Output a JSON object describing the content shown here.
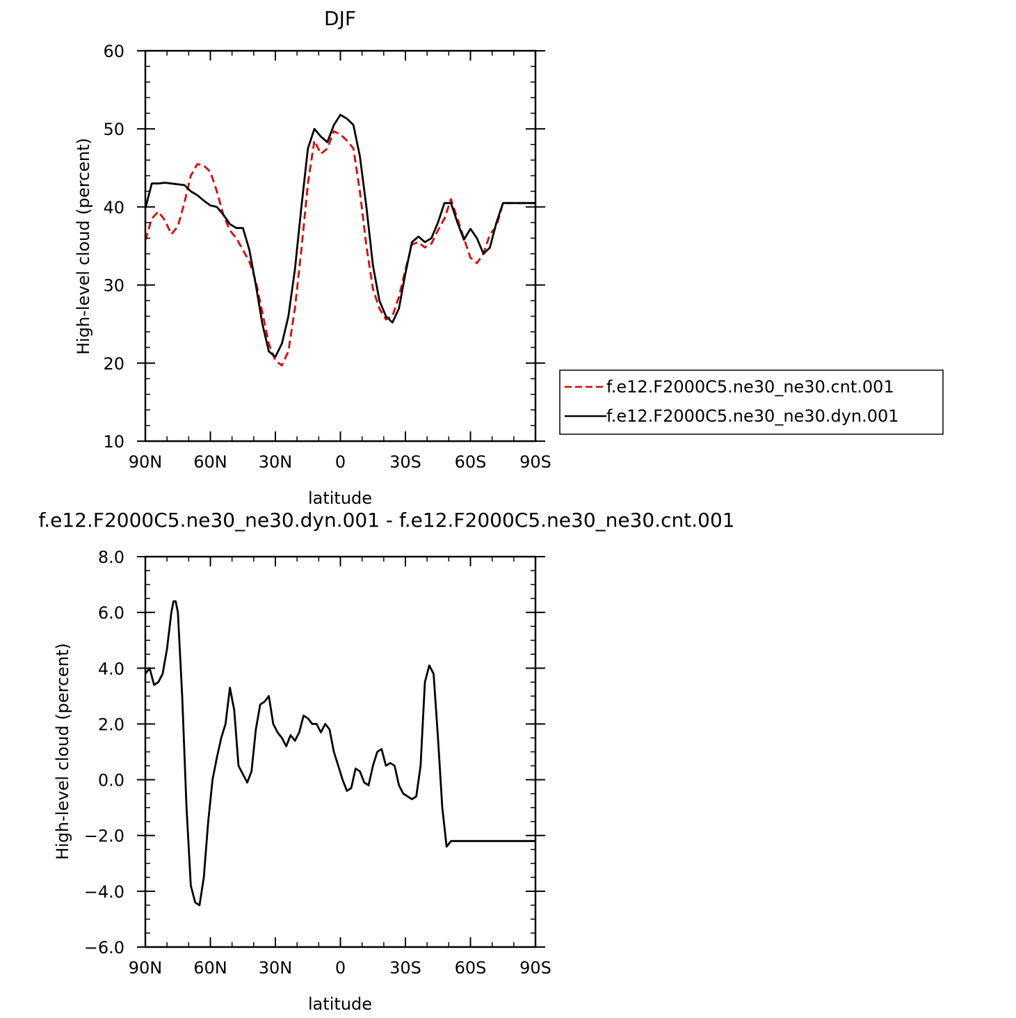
{
  "chart_data": [
    {
      "type": "line",
      "title": "DJF",
      "xlabel": "latitude",
      "ylabel": "High-level cloud (percent)",
      "xlim": [
        -90,
        90
      ],
      "ylim": [
        10,
        60
      ],
      "x_ticks": [
        -90,
        -60,
        -30,
        0,
        30,
        60,
        90
      ],
      "x_tick_labels": [
        "90N",
        "60N",
        "30N",
        "0",
        "30S",
        "60S",
        "90S"
      ],
      "y_ticks": [
        10,
        20,
        30,
        40,
        50,
        60
      ],
      "y_tick_labels": [
        "10",
        "20",
        "30",
        "40",
        "50",
        "60"
      ],
      "legend_position": "right",
      "series": [
        {
          "name": "f.e12.F2000C5.ne30_ne30.cnt.001",
          "color": "#e00000",
          "dash": "dashed",
          "x": [
            -90,
            -87,
            -84,
            -81,
            -78,
            -75,
            -72,
            -69,
            -66,
            -63,
            -60,
            -57,
            -54,
            -51,
            -48,
            -45,
            -42,
            -39,
            -36,
            -33,
            -30,
            -27,
            -24,
            -21,
            -18,
            -15,
            -12,
            -9,
            -6,
            -3,
            0,
            3,
            6,
            9,
            12,
            15,
            18,
            21,
            24,
            27,
            30,
            33,
            36,
            39,
            42,
            45,
            48,
            51,
            54,
            57,
            60,
            63,
            66,
            69,
            72,
            75,
            78,
            81,
            84,
            87,
            90
          ],
          "y": [
            35.7,
            38.5,
            39.4,
            38.3,
            36.5,
            37.5,
            40.5,
            44.0,
            45.5,
            45.3,
            44.5,
            42.0,
            39.0,
            37.0,
            36.0,
            34.5,
            33.0,
            30.5,
            26.5,
            22.5,
            20.3,
            19.7,
            21.5,
            27.0,
            34.5,
            43.0,
            48.5,
            46.8,
            47.5,
            49.7,
            49.3,
            48.5,
            47.5,
            42.0,
            35.0,
            29.5,
            27.0,
            25.6,
            26.0,
            28.5,
            32.0,
            35.2,
            35.5,
            34.8,
            35.3,
            37.0,
            38.5,
            41.0,
            38.5,
            36.0,
            33.5,
            32.8,
            34.0,
            36.5,
            37.5,
            40.5,
            40.5,
            40.5,
            40.5,
            40.5,
            40.5
          ]
        },
        {
          "name": "f.e12.F2000C5.ne30_ne30.dyn.001",
          "color": "#000000",
          "dash": "solid",
          "x": [
            -90,
            -87,
            -84,
            -81,
            -78,
            -75,
            -72,
            -69,
            -66,
            -63,
            -60,
            -57,
            -54,
            -51,
            -48,
            -45,
            -42,
            -39,
            -36,
            -33,
            -30,
            -27,
            -24,
            -21,
            -18,
            -15,
            -12,
            -9,
            -6,
            -3,
            0,
            3,
            6,
            9,
            12,
            15,
            18,
            21,
            24,
            27,
            30,
            33,
            36,
            39,
            42,
            45,
            48,
            51,
            54,
            57,
            60,
            63,
            66,
            69,
            72,
            75,
            78,
            81,
            84,
            87,
            90
          ],
          "y": [
            39.8,
            43.0,
            43.0,
            43.1,
            43.0,
            42.9,
            42.8,
            42.0,
            41.5,
            40.8,
            40.2,
            40.0,
            39.0,
            37.8,
            37.3,
            37.3,
            34.5,
            30.0,
            25.0,
            21.5,
            20.8,
            22.5,
            26.0,
            32.0,
            40.0,
            47.5,
            50.0,
            49.0,
            48.3,
            50.5,
            51.8,
            51.3,
            50.5,
            46.5,
            40.0,
            32.5,
            28.0,
            26.0,
            25.2,
            27.0,
            31.5,
            35.5,
            36.2,
            35.5,
            36.0,
            38.0,
            40.5,
            40.5,
            38.0,
            35.8,
            37.2,
            36.0,
            34.0,
            34.8,
            38.0,
            40.5,
            40.5,
            40.5,
            40.5,
            40.5,
            40.5
          ]
        }
      ]
    },
    {
      "type": "line",
      "title": "f.e12.F2000C5.ne30_ne30.dyn.001 - f.e12.F2000C5.ne30_ne30.cnt.001",
      "xlabel": "latitude",
      "ylabel": "High-level cloud (percent)",
      "xlim": [
        -90,
        90
      ],
      "ylim": [
        -6,
        8
      ],
      "x_ticks": [
        -90,
        -60,
        -30,
        0,
        30,
        60,
        90
      ],
      "x_tick_labels": [
        "90N",
        "60N",
        "30N",
        "0",
        "30S",
        "60S",
        "90S"
      ],
      "y_ticks": [
        -6,
        -4,
        -2,
        0,
        2,
        4,
        6,
        8
      ],
      "y_tick_labels": [
        "−6.0",
        "−4.0",
        "−2.0",
        "0.0",
        "2.0",
        "4.0",
        "6.0",
        "8.0"
      ],
      "series": [
        {
          "color": "#000000",
          "dash": "solid",
          "x": [
            -90,
            -88,
            -86,
            -84,
            -82,
            -80,
            -78,
            -77,
            -76,
            -75,
            -73,
            -71,
            -69,
            -67,
            -65,
            -63,
            -61,
            -59,
            -57,
            -55,
            -53,
            -51,
            -49,
            -47,
            -45,
            -43,
            -41,
            -39,
            -37,
            -35,
            -33,
            -31,
            -29,
            -27,
            -25,
            -23,
            -21,
            -19,
            -17,
            -15,
            -13,
            -11,
            -9,
            -7,
            -5,
            -3,
            -1,
            1,
            3,
            5,
            7,
            9,
            11,
            13,
            15,
            17,
            19,
            21,
            23,
            25,
            27,
            29,
            31,
            33,
            35,
            37,
            39,
            41,
            43,
            45,
            47,
            49,
            51,
            53,
            55,
            57,
            59,
            61,
            63,
            65,
            67,
            69,
            71,
            73,
            75,
            77,
            79,
            81,
            83,
            85,
            87,
            89,
            90
          ],
          "y": [
            3.8,
            4.0,
            3.4,
            3.5,
            3.8,
            4.7,
            6.0,
            6.4,
            6.4,
            6.0,
            3.0,
            -1.0,
            -3.8,
            -4.4,
            -4.5,
            -3.5,
            -1.5,
            0.0,
            0.8,
            1.5,
            2.0,
            3.3,
            2.5,
            0.5,
            0.2,
            -0.1,
            0.3,
            1.8,
            2.7,
            2.8,
            3.0,
            2.0,
            1.7,
            1.5,
            1.2,
            1.6,
            1.4,
            1.7,
            2.3,
            2.2,
            2.0,
            2.0,
            1.7,
            2.0,
            1.8,
            1.0,
            0.5,
            0.0,
            -0.4,
            -0.3,
            0.4,
            0.3,
            -0.1,
            -0.2,
            0.5,
            1.0,
            1.1,
            0.5,
            0.6,
            0.5,
            -0.2,
            -0.5,
            -0.6,
            -0.7,
            -0.6,
            0.5,
            3.5,
            4.1,
            3.8,
            1.5,
            -1.0,
            -2.4,
            -2.2,
            -2.2,
            -2.2,
            -2.2,
            -2.2,
            -2.2,
            -2.2,
            -2.2,
            -2.2,
            -2.2,
            -2.2,
            -2.2,
            -2.2,
            -2.2,
            -2.2,
            -2.2,
            -2.2,
            -2.2,
            -2.2,
            -2.2,
            -2.2
          ]
        }
      ]
    }
  ]
}
